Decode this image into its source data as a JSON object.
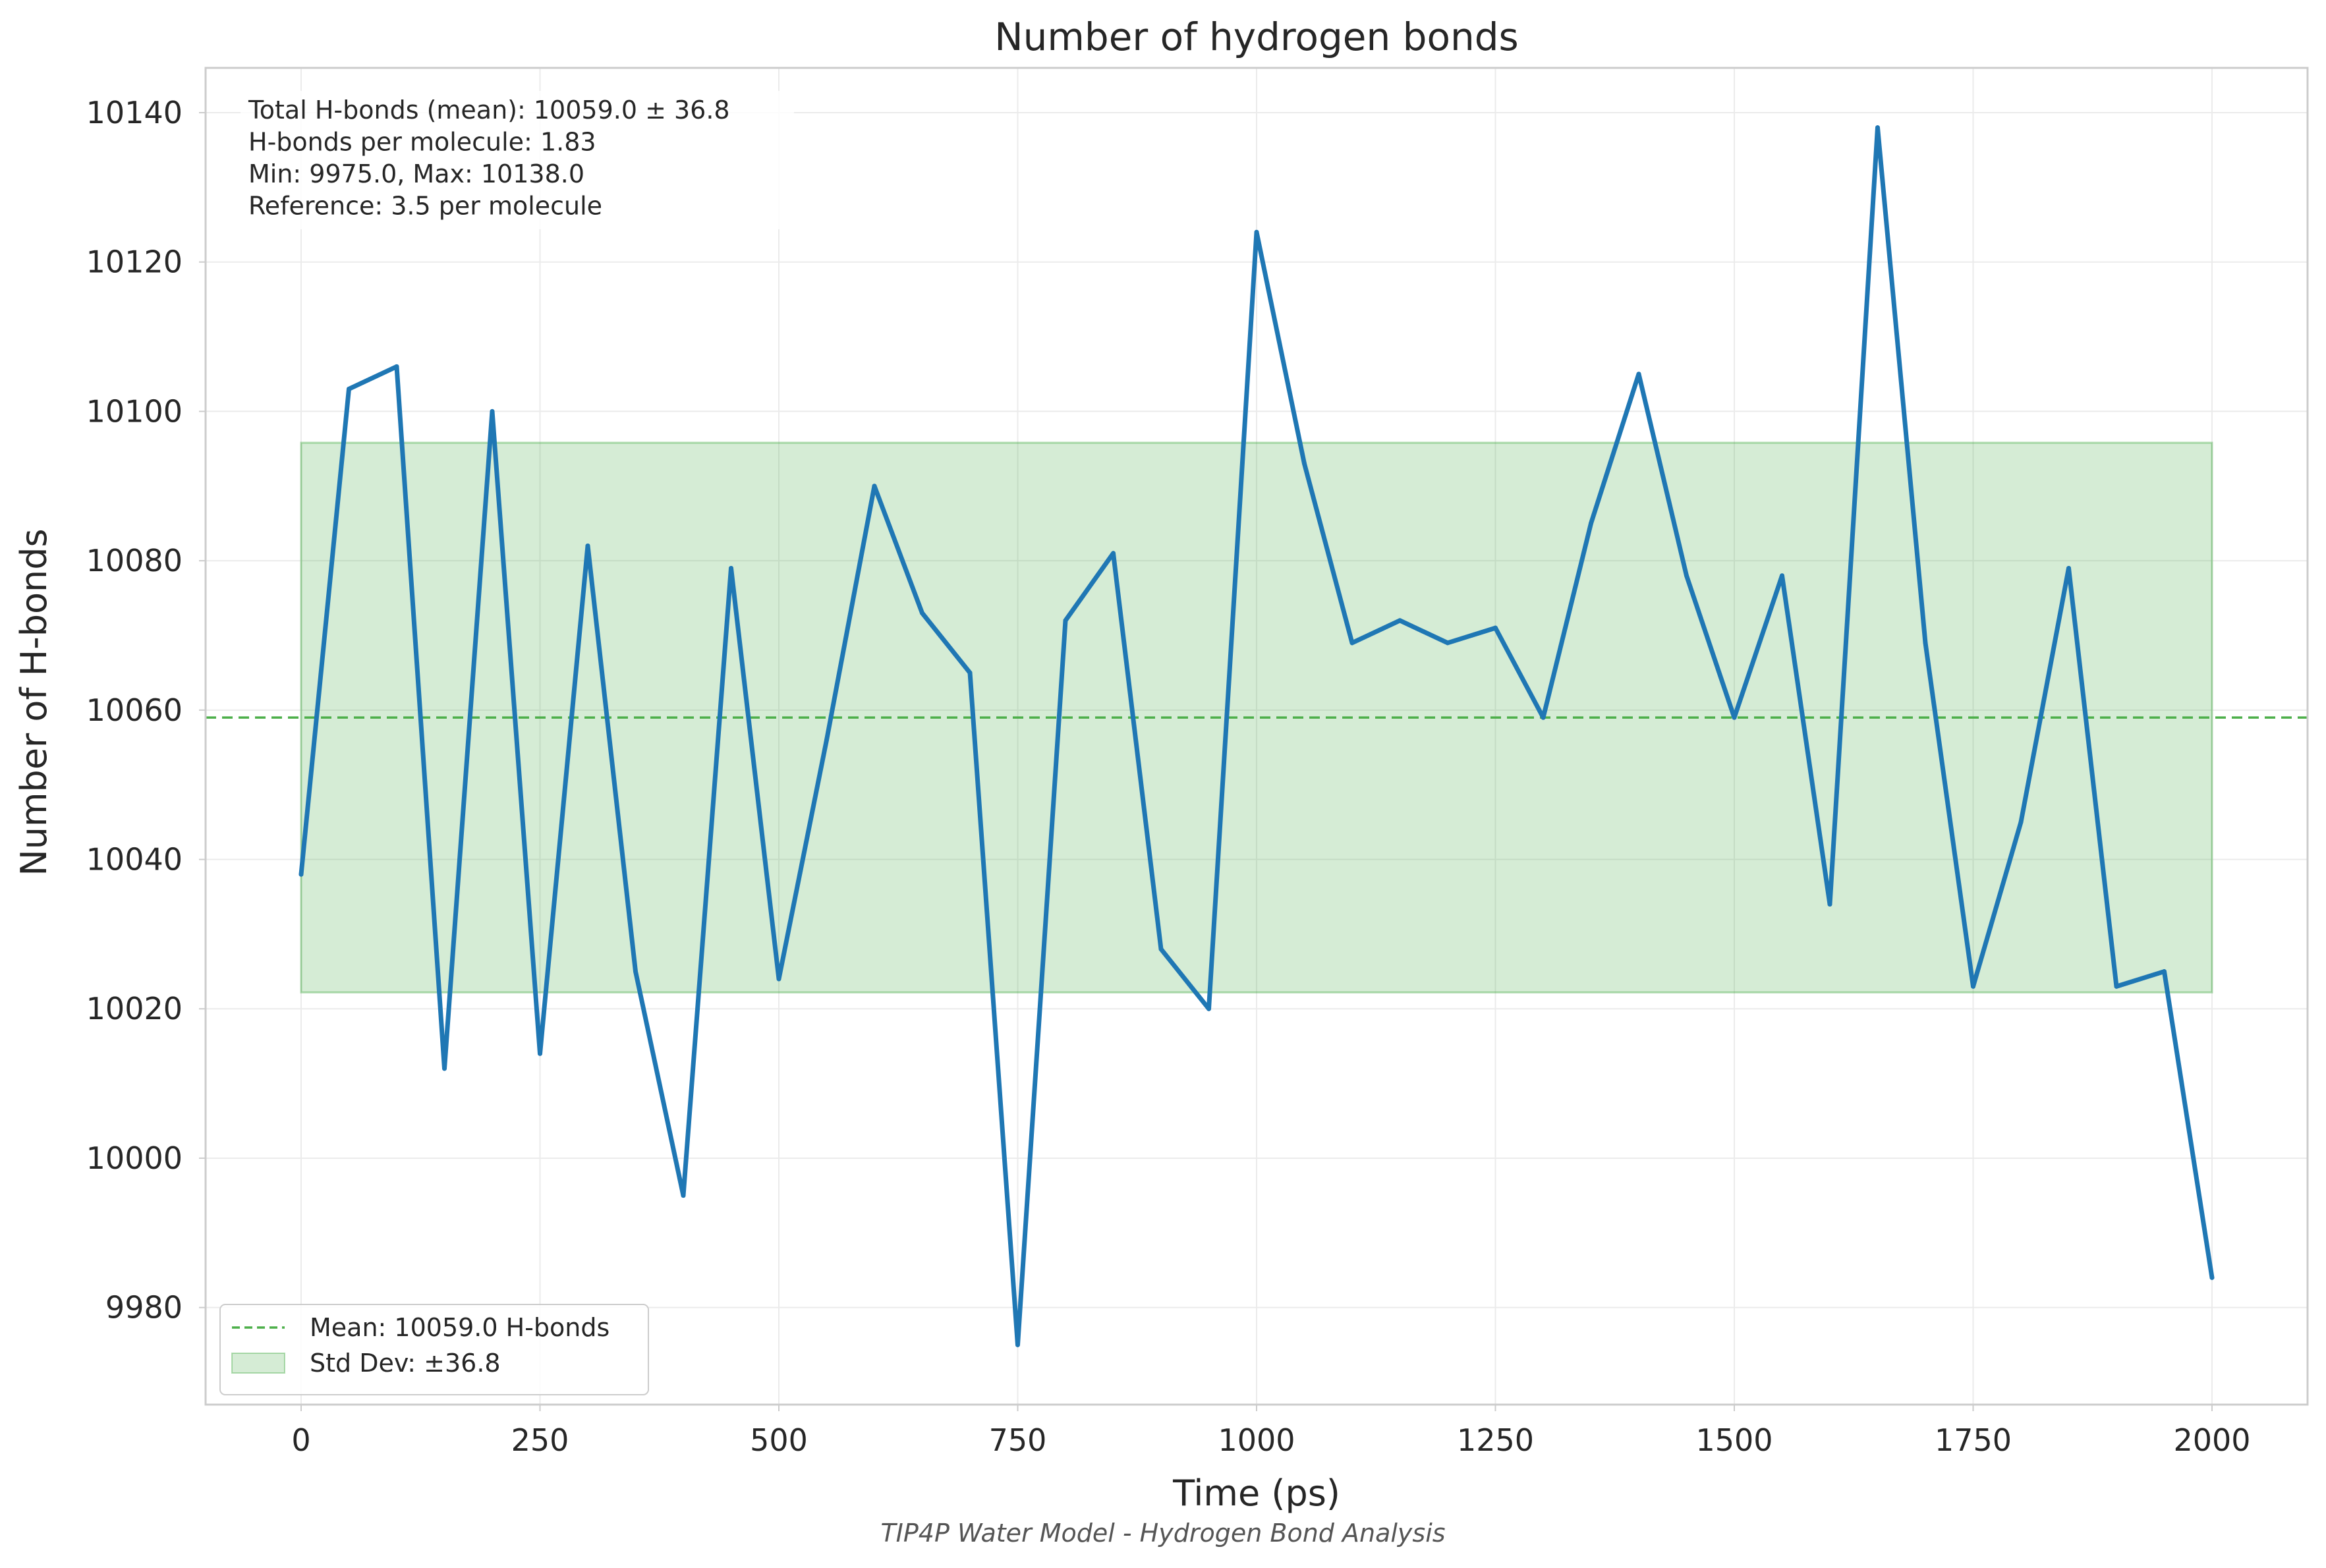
{
  "chart_data": {
    "type": "line",
    "title": "Number of hydrogen bonds",
    "xlabel": "Time (ps)",
    "ylabel": "Number of H-bonds",
    "caption": "TIP4P Water Model - Hydrogen Bond Analysis",
    "xlim": [
      -100,
      2100
    ],
    "ylim": [
      9967,
      10146
    ],
    "xticks": [
      0,
      250,
      500,
      750,
      1000,
      1250,
      1500,
      1750,
      2000
    ],
    "yticks": [
      9980,
      10000,
      10020,
      10040,
      10060,
      10080,
      10100,
      10120,
      10140
    ],
    "grid": true,
    "legend_position": "lower-left",
    "x": [
      0,
      50,
      100,
      150,
      200,
      250,
      300,
      350,
      400,
      450,
      500,
      550,
      600,
      650,
      700,
      750,
      800,
      850,
      900,
      950,
      1000,
      1050,
      1100,
      1150,
      1200,
      1250,
      1300,
      1350,
      1400,
      1450,
      1500,
      1550,
      1600,
      1650,
      1700,
      1750,
      1800,
      1850,
      1900,
      1950,
      2000
    ],
    "series": [
      {
        "name": "",
        "color": "#1f77b4",
        "values": [
          10038,
          10103,
          10106,
          10012,
          10100,
          10014,
          10082,
          10025,
          9995,
          10079,
          10024,
          10056,
          10090,
          10073,
          10065,
          9975,
          10072,
          10081,
          10028,
          10020,
          10124,
          10093,
          10069,
          10072,
          10069,
          10071,
          10059,
          10085,
          10105,
          10078,
          10059,
          10078,
          10034,
          10138,
          10069,
          10023,
          10045,
          10079,
          10023,
          10025,
          9984
        ]
      }
    ],
    "mean_line": {
      "value": 10059.0,
      "label": "Mean: 10059.0 H-bonds",
      "color": "#4daf4a"
    },
    "std_band": {
      "lower": 10022.2,
      "upper": 10095.8,
      "x_range": [
        0,
        2000
      ],
      "label": "Std Dev: ±36.8",
      "color": "#2ca02c"
    },
    "annotations": [
      "Total H-bonds (mean): 10059.0 ± 36.8",
      "H-bonds per molecule: 1.83",
      "Min: 9975.0, Max: 10138.0",
      "Reference: 3.5 per molecule"
    ]
  }
}
